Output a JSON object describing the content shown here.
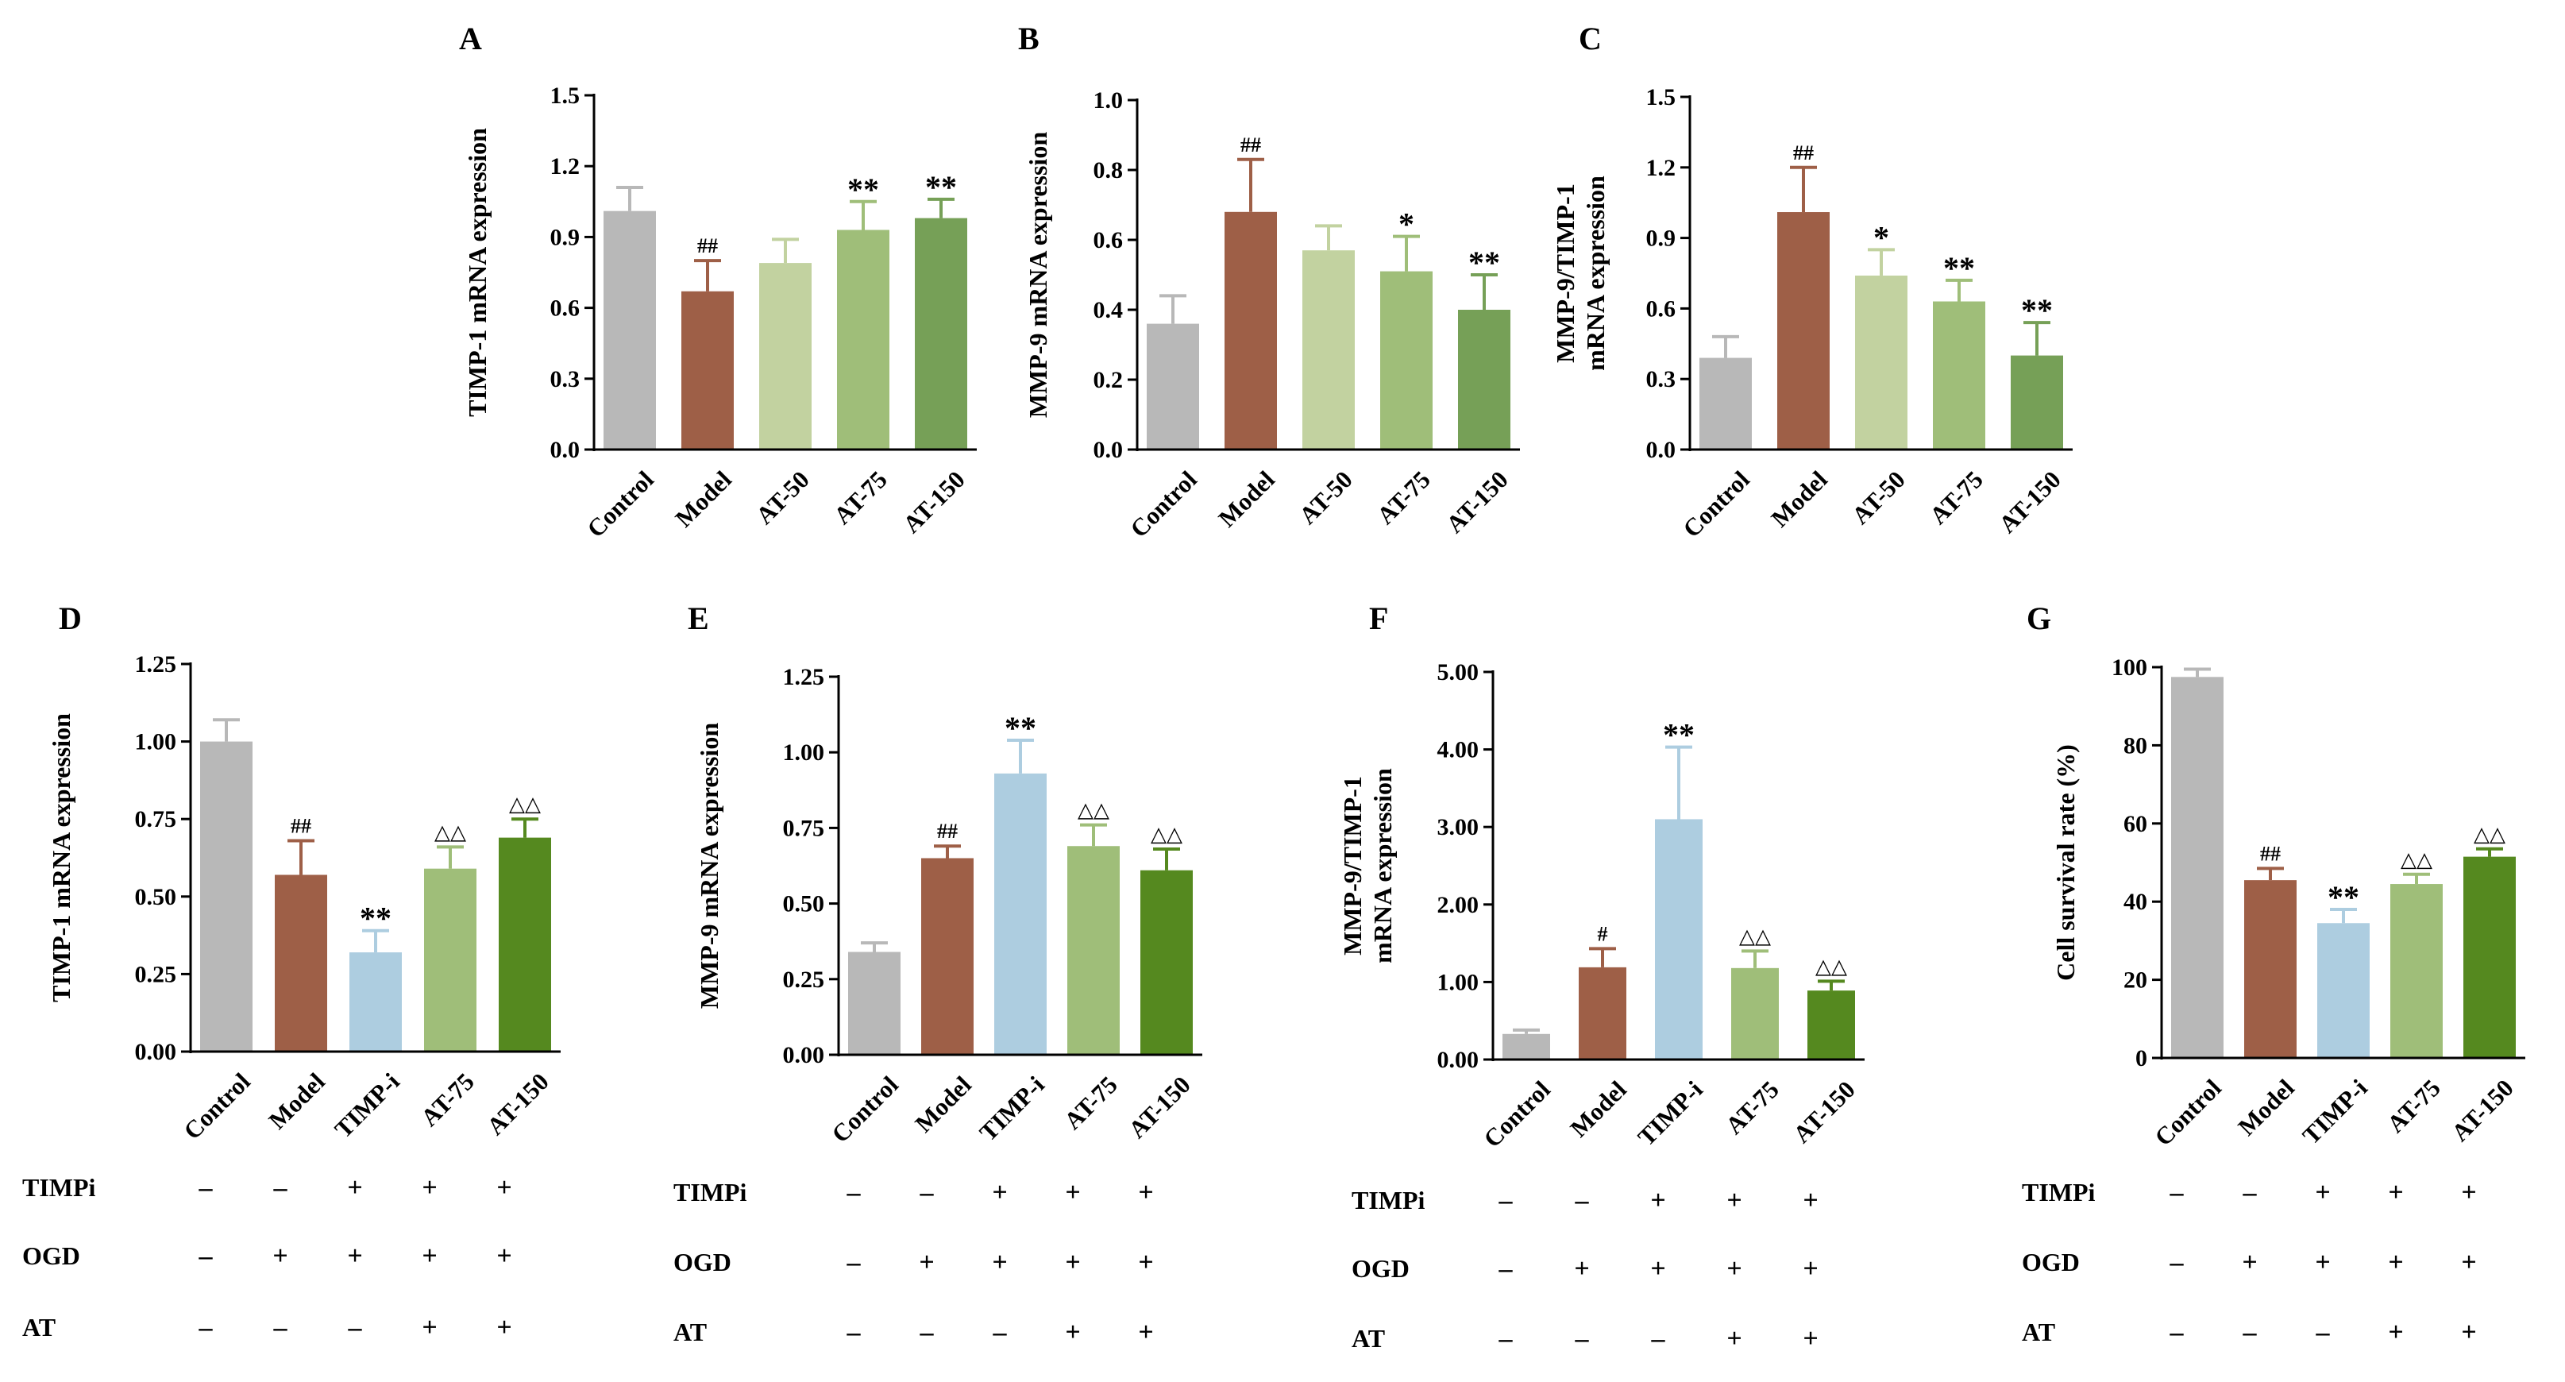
{
  "figure": {
    "colors": {
      "Control": "#b8b8b8",
      "Model": "#9e5f47",
      "AT-50": "#c2d2a0",
      "AT-75": "#9fbe79",
      "AT-150": "#76a057",
      "AT-150-dark": "#55891f",
      "TIMP-i": "#adcde0",
      "axis": "#000000"
    },
    "condition_labels": {
      "timpi": "TIMPi",
      "ogd": "OGD",
      "at": "AT"
    },
    "condition_values": {
      "timpi": [
        "–",
        "–",
        "+",
        "+",
        "+"
      ],
      "ogd": [
        "–",
        "+",
        "+",
        "+",
        "+"
      ],
      "at": [
        "–",
        "–",
        "–",
        "+",
        "+"
      ]
    }
  },
  "chart_data": [
    {
      "panel": "A",
      "type": "bar",
      "ylabel": "TIMP-1 mRNA expression",
      "categories": [
        "Control",
        "Model",
        "AT-50",
        "AT-75",
        "AT-150"
      ],
      "values": [
        1.01,
        0.67,
        0.79,
        0.93,
        0.98
      ],
      "errors": [
        0.1,
        0.13,
        0.1,
        0.12,
        0.08
      ],
      "annotations": [
        "",
        "##",
        "",
        "**",
        "**"
      ],
      "ylim": [
        0,
        1.5
      ],
      "yticks": [
        "0.0",
        "0.3",
        "0.6",
        "0.9",
        "1.2",
        "1.5"
      ],
      "colors": [
        "#b8b8b8",
        "#9e5f47",
        "#c2d2a0",
        "#9fbe79",
        "#76a057"
      ]
    },
    {
      "panel": "B",
      "type": "bar",
      "ylabel": "MMP-9 mRNA expression",
      "categories": [
        "Control",
        "Model",
        "AT-50",
        "AT-75",
        "AT-150"
      ],
      "values": [
        0.36,
        0.68,
        0.57,
        0.51,
        0.4
      ],
      "errors": [
        0.08,
        0.15,
        0.07,
        0.1,
        0.1
      ],
      "annotations": [
        "",
        "##",
        "",
        "*",
        "**"
      ],
      "ylim": [
        0,
        1.0
      ],
      "yticks": [
        "0.0",
        "0.2",
        "0.4",
        "0.6",
        "0.8",
        "1.0"
      ],
      "colors": [
        "#b8b8b8",
        "#9e5f47",
        "#c2d2a0",
        "#9fbe79",
        "#76a057"
      ]
    },
    {
      "panel": "C",
      "type": "bar",
      "ylabel": [
        "MMP-9/TIMP-1",
        "mRNA expression"
      ],
      "categories": [
        "Control",
        "Model",
        "AT-50",
        "AT-75",
        "AT-150"
      ],
      "values": [
        0.39,
        1.01,
        0.74,
        0.63,
        0.4
      ],
      "errors": [
        0.09,
        0.19,
        0.11,
        0.09,
        0.14
      ],
      "annotations": [
        "",
        "##",
        "*",
        "**",
        "**"
      ],
      "ylim": [
        0,
        1.5
      ],
      "yticks": [
        "0.0",
        "0.3",
        "0.6",
        "0.9",
        "1.2",
        "1.5"
      ],
      "colors": [
        "#b8b8b8",
        "#9e5f47",
        "#c2d2a0",
        "#9fbe79",
        "#76a057"
      ]
    },
    {
      "panel": "D",
      "type": "bar",
      "ylabel": "TIMP-1 mRNA expression",
      "categories": [
        "Control",
        "Model",
        "TIMP-i",
        "AT-75",
        "AT-150"
      ],
      "values": [
        1.0,
        0.57,
        0.32,
        0.59,
        0.69
      ],
      "errors": [
        0.07,
        0.11,
        0.07,
        0.07,
        0.06
      ],
      "annotations": [
        "",
        "##",
        "**",
        "△△",
        "△△"
      ],
      "ylim": [
        0,
        1.25
      ],
      "yticks": [
        "0.00",
        "0.25",
        "0.50",
        "0.75",
        "1.00",
        "1.25"
      ],
      "colors": [
        "#b8b8b8",
        "#9e5f47",
        "#adcde0",
        "#9fbe79",
        "#55891f"
      ]
    },
    {
      "panel": "E",
      "type": "bar",
      "ylabel": "MMP-9 mRNA expression",
      "categories": [
        "Control",
        "Model",
        "TIMP-i",
        "AT-75",
        "AT-150"
      ],
      "values": [
        0.34,
        0.65,
        0.93,
        0.69,
        0.61
      ],
      "errors": [
        0.03,
        0.04,
        0.11,
        0.07,
        0.07
      ],
      "annotations": [
        "",
        "##",
        "**",
        "△△",
        "△△"
      ],
      "ylim": [
        0,
        1.25
      ],
      "yticks": [
        "0.00",
        "0.25",
        "0.50",
        "0.75",
        "1.00",
        "1.25"
      ],
      "colors": [
        "#b8b8b8",
        "#9e5f47",
        "#adcde0",
        "#9fbe79",
        "#55891f"
      ]
    },
    {
      "panel": "F",
      "type": "bar",
      "ylabel": [
        "MMP-9/TIMP-1",
        "mRNA expression"
      ],
      "categories": [
        "Control",
        "Model",
        "TIMP-i",
        "AT-75",
        "AT-150"
      ],
      "values": [
        0.33,
        1.19,
        3.1,
        1.18,
        0.89
      ],
      "errors": [
        0.05,
        0.24,
        0.93,
        0.22,
        0.12
      ],
      "annotations": [
        "",
        "#",
        "**",
        "△△",
        "△△"
      ],
      "ylim": [
        0,
        5.0
      ],
      "yticks": [
        "0.00",
        "1.00",
        "2.00",
        "3.00",
        "4.00",
        "5.00"
      ],
      "colors": [
        "#b8b8b8",
        "#9e5f47",
        "#adcde0",
        "#9fbe79",
        "#55891f"
      ]
    },
    {
      "panel": "G",
      "type": "bar",
      "ylabel": "Cell survival rate (%)",
      "categories": [
        "Control",
        "Model",
        "TIMP-i",
        "AT-75",
        "AT-150"
      ],
      "values": [
        97.5,
        45.5,
        34.5,
        44.5,
        51.5
      ],
      "errors": [
        2.0,
        3.0,
        3.5,
        2.5,
        2.0
      ],
      "annotations": [
        "",
        "##",
        "**",
        "△△",
        "△△"
      ],
      "ylim": [
        0,
        100
      ],
      "yticks": [
        "0",
        "20",
        "40",
        "60",
        "80",
        "100"
      ],
      "colors": [
        "#b8b8b8",
        "#9e5f47",
        "#adcde0",
        "#9fbe79",
        "#55891f"
      ]
    }
  ]
}
